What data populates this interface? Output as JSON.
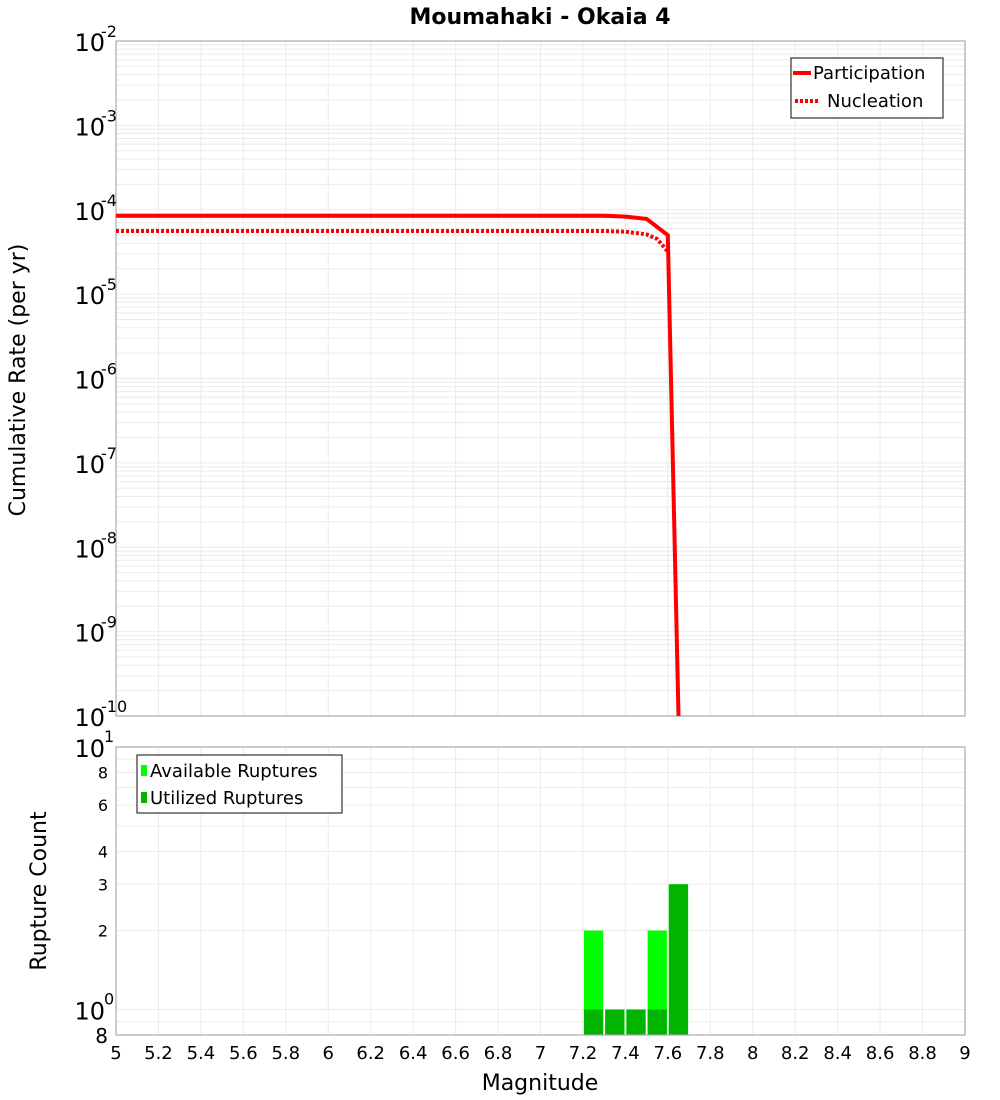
{
  "title": "Moumahaki - Okaia 4",
  "top_plot": {
    "ylabel": "Cumulative Rate (per yr)",
    "y_ticks": [
      {
        "base": "10",
        "exp": "-2"
      },
      {
        "base": "10",
        "exp": "-3"
      },
      {
        "base": "10",
        "exp": "-4"
      },
      {
        "base": "10",
        "exp": "-5"
      },
      {
        "base": "10",
        "exp": "-6"
      },
      {
        "base": "10",
        "exp": "-7"
      },
      {
        "base": "10",
        "exp": "-8"
      },
      {
        "base": "10",
        "exp": "-9"
      },
      {
        "base": "10",
        "exp": "-10"
      }
    ],
    "legend": [
      {
        "label": "Participation",
        "style": "solid",
        "color": "#ff0000"
      },
      {
        "label": "Nucleation",
        "style": "dotted",
        "color": "#ff0000"
      }
    ]
  },
  "bottom_plot": {
    "ylabel": "Rupture Count",
    "y_ticks": [
      {
        "label": "10",
        "exp": "1"
      },
      {
        "label": "8"
      },
      {
        "label": "6"
      },
      {
        "label": "4"
      },
      {
        "label": "3"
      },
      {
        "label": "2"
      },
      {
        "label": "10",
        "exp": "0"
      },
      {
        "label": "8"
      }
    ],
    "legend": [
      {
        "label": "Available Ruptures",
        "color": "#00ff00"
      },
      {
        "label": "Utilized Ruptures",
        "color": "#00b400"
      }
    ]
  },
  "xlabel": "Magnitude",
  "x_ticks": [
    "5",
    "5.2",
    "5.4",
    "5.6",
    "5.8",
    "6",
    "6.2",
    "6.4",
    "6.6",
    "6.8",
    "7",
    "7.2",
    "7.4",
    "7.6",
    "7.8",
    "8",
    "8.2",
    "8.4",
    "8.6",
    "8.8",
    "9"
  ],
  "chart_data": [
    {
      "type": "line",
      "title": "Moumahaki - Okaia 4",
      "xlabel": "Magnitude",
      "ylabel": "Cumulative Rate (per yr)",
      "yscale": "log",
      "xlim": [
        5,
        9
      ],
      "ylim": [
        1e-10,
        0.01
      ],
      "grid": true,
      "legend_position": "top-right",
      "series": [
        {
          "name": "Participation",
          "style": "solid",
          "color": "#ff0000",
          "x": [
            5.0,
            5.5,
            6.0,
            6.5,
            7.0,
            7.3,
            7.4,
            7.5,
            7.6,
            7.65
          ],
          "y": [
            8.5e-05,
            8.5e-05,
            8.5e-05,
            8.5e-05,
            8.5e-05,
            8.5e-05,
            8.3e-05,
            7.8e-05,
            5e-05,
            1e-10
          ]
        },
        {
          "name": "Nucleation",
          "style": "dotted",
          "color": "#ff0000",
          "x": [
            5.0,
            5.5,
            6.0,
            6.5,
            7.0,
            7.3,
            7.4,
            7.5,
            7.55,
            7.6
          ],
          "y": [
            5.6e-05,
            5.6e-05,
            5.6e-05,
            5.6e-05,
            5.6e-05,
            5.6e-05,
            5.5e-05,
            5.1e-05,
            4.5e-05,
            3.2e-05
          ]
        }
      ]
    },
    {
      "type": "bar",
      "xlabel": "Magnitude",
      "ylabel": "Rupture Count",
      "yscale": "log",
      "xlim": [
        5,
        9
      ],
      "ylim": [
        0.8,
        10
      ],
      "grid": true,
      "legend_position": "top-left",
      "categories": [
        "7.25",
        "7.35",
        "7.45",
        "7.55",
        "7.65"
      ],
      "series": [
        {
          "name": "Available Ruptures",
          "color": "#00ff00",
          "values": [
            2,
            1,
            1,
            2,
            3
          ]
        },
        {
          "name": "Utilized Ruptures",
          "color": "#00b400",
          "values": [
            1,
            1,
            1,
            1,
            3
          ]
        }
      ]
    }
  ]
}
